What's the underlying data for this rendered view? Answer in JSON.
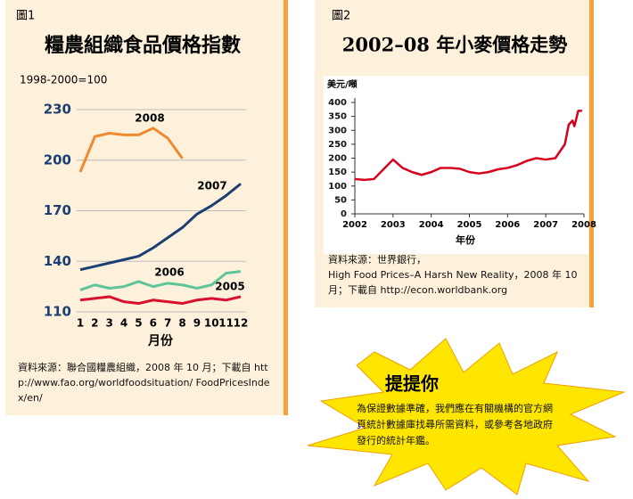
{
  "chart_data": [
    {
      "type": "line",
      "figure_label": "圖1",
      "title": "糧農組織食品價格指數",
      "subtitle": "1998-2000=100",
      "categories": [
        "1",
        "2",
        "3",
        "4",
        "5",
        "6",
        "7",
        "8",
        "9",
        "10",
        "11",
        "12"
      ],
      "x_label": "月份",
      "ylim": [
        110,
        230
      ],
      "yticks": [
        110,
        140,
        170,
        200,
        230
      ],
      "grid": true,
      "series": [
        {
          "name": "2008",
          "color": "#f08a30",
          "values": [
            193,
            214,
            216,
            215,
            215,
            219,
            213,
            201,
            null,
            null,
            null,
            null
          ]
        },
        {
          "name": "2007",
          "color": "#1b3f73",
          "values": [
            135,
            137,
            139,
            141,
            143,
            148,
            154,
            160,
            168,
            173,
            179,
            186
          ]
        },
        {
          "name": "2006",
          "color": "#5fc49a",
          "values": [
            123,
            126,
            124,
            125,
            128,
            125,
            127,
            126,
            124,
            126,
            133,
            134
          ]
        },
        {
          "name": "2005",
          "color": "#d8102f",
          "values": [
            117,
            118,
            119,
            116,
            115,
            117,
            116,
            115,
            117,
            118,
            117,
            119
          ]
        }
      ],
      "source": "資料來源：聯合國糧農組織，2008 年 10 月；下載自 http://www.fao.org/worldfoodsituation/ FoodPricesIndex/en/"
    },
    {
      "type": "line",
      "figure_label": "圖2",
      "title": "2002–08 年小麥價格走勢",
      "y_label": "美元/噸",
      "x_label": "年份",
      "x": [
        2002,
        2002.25,
        2002.5,
        2002.75,
        2003,
        2003.25,
        2003.5,
        2003.75,
        2004,
        2004.25,
        2004.5,
        2004.75,
        2005,
        2005.25,
        2005.5,
        2005.75,
        2006,
        2006.25,
        2006.5,
        2006.75,
        2007,
        2007.25,
        2007.5,
        2007.6,
        2007.7,
        2007.75,
        2007.85,
        2007.95
      ],
      "values": [
        125,
        122,
        125,
        160,
        195,
        165,
        150,
        140,
        150,
        165,
        165,
        162,
        150,
        145,
        150,
        160,
        165,
        175,
        190,
        200,
        195,
        200,
        250,
        320,
        335,
        315,
        370,
        370
      ],
      "color": "#d6001c",
      "xlim": [
        2002,
        2008
      ],
      "xticks": [
        2002,
        2003,
        2004,
        2005,
        2006,
        2007,
        2008
      ],
      "ylim": [
        0,
        400
      ],
      "yticks": [
        0,
        50,
        100,
        150,
        200,
        250,
        300,
        350,
        400
      ],
      "source_label": "資料來源：世界銀行，",
      "source": "High Food Prices–A Harsh New Reality，2008 年 10月；下載自 http://econ.worldbank.org"
    }
  ],
  "callout": {
    "title": "提提你",
    "text": "為保證數據準確，我們應在有關機構的官方網頁統計數據庫找尋所需資料，或參考各地政府發行的統計年鑑。"
  }
}
